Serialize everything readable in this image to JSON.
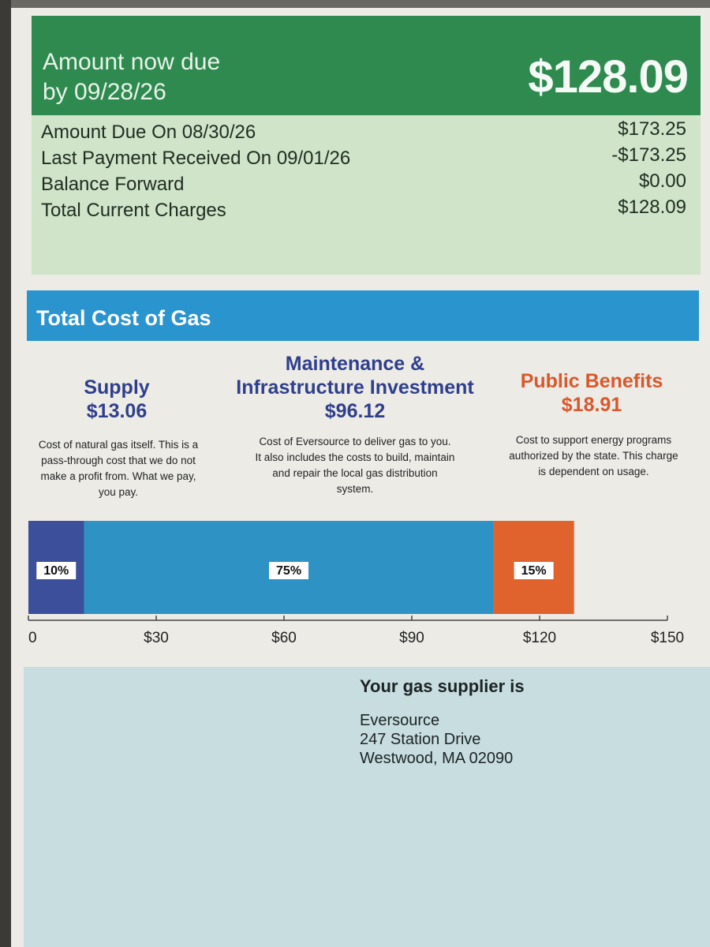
{
  "amount_due": {
    "title_line1": "Amount now due",
    "title_line2": "by 09/28/26",
    "amount": "$128.09",
    "rows": [
      {
        "label": "Amount Due On 08/30/26",
        "value": "$173.25"
      },
      {
        "label": "Last Payment Received On 09/01/26",
        "value": "-$173.25"
      },
      {
        "label": "Balance Forward",
        "value": "$0.00"
      },
      {
        "label": "Total Current Charges",
        "value": "$128.09"
      }
    ]
  },
  "total_cost": {
    "title": "Total Cost of Gas",
    "categories": [
      {
        "name_lines": [
          "Supply"
        ],
        "amount": "$13.06",
        "color": "#2f3f8c",
        "description_lines": [
          "Cost of natural gas itself. This is a",
          "pass-through cost that we do not",
          "make a profit from. What we pay,",
          "you pay."
        ]
      },
      {
        "name_lines": [
          "Maintenance &",
          "Infrastructure Investment"
        ],
        "amount": "$96.12",
        "color": "#2f3f8c",
        "description_lines": [
          "Cost of Eversource to deliver gas to you.",
          "It also includes the costs to build, maintain",
          "and repair the local gas distribution",
          "system."
        ]
      },
      {
        "name_lines": [
          "Public Benefits"
        ],
        "amount": "$18.91",
        "color": "#d9582b",
        "description_lines": [
          "Cost to support energy programs",
          "authorized by the state. This charge",
          "is dependent on usage."
        ]
      }
    ]
  },
  "chart_data": {
    "type": "bar",
    "orientation": "horizontal-stacked",
    "segments": [
      {
        "value": 13.06,
        "label": "10%",
        "color": "#3c4f9a"
      },
      {
        "value": 96.12,
        "label": "75%",
        "color": "#2e92c4"
      },
      {
        "value": 18.91,
        "label": "15%",
        "color": "#e0622c"
      }
    ],
    "xlim": [
      0,
      150
    ],
    "ticks": [
      0,
      30,
      60,
      90,
      120,
      150
    ],
    "tick_labels": [
      "0",
      "$30",
      "$60",
      "$90",
      "$120",
      "$150"
    ]
  },
  "supplier": {
    "title": "Your gas supplier is",
    "name": "Eversource",
    "address1": "247 Station Drive",
    "address2": "Westwood, MA 02090"
  }
}
